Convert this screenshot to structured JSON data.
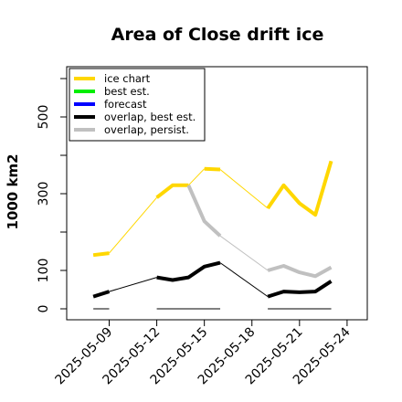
{
  "chart_data": {
    "type": "line",
    "title": "Area of Close drift ice",
    "ylabel": "1000 km2",
    "xlabel": "",
    "ylim": [
      -18,
      620
    ],
    "y_ticks": [
      0,
      100,
      300,
      500
    ],
    "x_tick_labels": [
      "2025-05-09",
      "2025-05-12",
      "2025-05-15",
      "2025-05-18",
      "2025-05-21",
      "2025-05-24"
    ],
    "x_tick_values": [
      "2025-05-09",
      "2025-05-12",
      "2025-05-15",
      "2025-05-18",
      "2025-05-21",
      "2025-05-24"
    ],
    "highlight_tick": "2025-05-15",
    "highlight_color": "#228B22",
    "xlim": [
      "2025-05-06",
      "2025-05-25"
    ],
    "legend_position": "top-left",
    "legend": [
      {
        "label": "ice chart",
        "color": "#FFD700"
      },
      {
        "label": "best est.",
        "color": "#00EE00"
      },
      {
        "label": "forecast",
        "color": "#0000FF"
      },
      {
        "label": "overlap, best est.",
        "color": "#000000"
      },
      {
        "label": "overlap, persist.",
        "color": "#C0C0C0"
      }
    ],
    "series": [
      {
        "name": "ice chart",
        "color": "#FFD700",
        "segments": [
          {
            "x": [
              "2025-05-08",
              "2025-05-09"
            ],
            "y": [
              140,
              145
            ]
          },
          {
            "x": [
              "2025-05-12",
              "2025-05-13",
              "2025-05-14"
            ],
            "y": [
              290,
              322,
              322
            ]
          },
          {
            "x": [
              "2025-05-15",
              "2025-05-16"
            ],
            "y": [
              365,
              363
            ]
          },
          {
            "x": [
              "2025-05-19",
              "2025-05-20",
              "2025-05-21",
              "2025-05-22",
              "2025-05-23"
            ],
            "y": [
              262,
              322,
              275,
              245,
              385
            ]
          }
        ],
        "connectors": [
          {
            "x": [
              "2025-05-09",
              "2025-05-12"
            ],
            "y": [
              145,
              290
            ]
          },
          {
            "x": [
              "2025-05-14",
              "2025-05-15"
            ],
            "y": [
              322,
              365
            ]
          },
          {
            "x": [
              "2025-05-16",
              "2025-05-19"
            ],
            "y": [
              363,
              262
            ]
          }
        ]
      },
      {
        "name": "overlap, persist.",
        "color": "#C0C0C0",
        "segments": [
          {
            "x": [
              "2025-05-14",
              "2025-05-15",
              "2025-05-16"
            ],
            "y": [
              322,
              228,
              190
            ]
          },
          {
            "x": [
              "2025-05-19",
              "2025-05-20",
              "2025-05-21",
              "2025-05-22",
              "2025-05-23"
            ],
            "y": [
              100,
              112,
              95,
              85,
              108
            ]
          }
        ],
        "connectors": [
          {
            "x": [
              "2025-05-16",
              "2025-05-19"
            ],
            "y": [
              190,
              100
            ]
          }
        ]
      },
      {
        "name": "overlap, best est.",
        "color": "#000000",
        "segments": [
          {
            "x": [
              "2025-05-08",
              "2025-05-09"
            ],
            "y": [
              32,
              45
            ]
          },
          {
            "x": [
              "2025-05-12",
              "2025-05-13",
              "2025-05-14",
              "2025-05-15",
              "2025-05-16"
            ],
            "y": [
              82,
              75,
              82,
              110,
              120
            ]
          },
          {
            "x": [
              "2025-05-19",
              "2025-05-20",
              "2025-05-21",
              "2025-05-22",
              "2025-05-23"
            ],
            "y": [
              32,
              45,
              43,
              45,
              72
            ]
          }
        ],
        "connectors": [
          {
            "x": [
              "2025-05-09",
              "2025-05-12"
            ],
            "y": [
              45,
              82
            ]
          },
          {
            "x": [
              "2025-05-16",
              "2025-05-19"
            ],
            "y": [
              120,
              32
            ]
          }
        ]
      }
    ],
    "baseline_segments": {
      "color": "#808080",
      "y": 0,
      "ranges": [
        [
          "2025-05-08",
          "2025-05-09"
        ],
        [
          "2025-05-12",
          "2025-05-16"
        ],
        [
          "2025-05-19",
          "2025-05-23"
        ]
      ]
    }
  }
}
